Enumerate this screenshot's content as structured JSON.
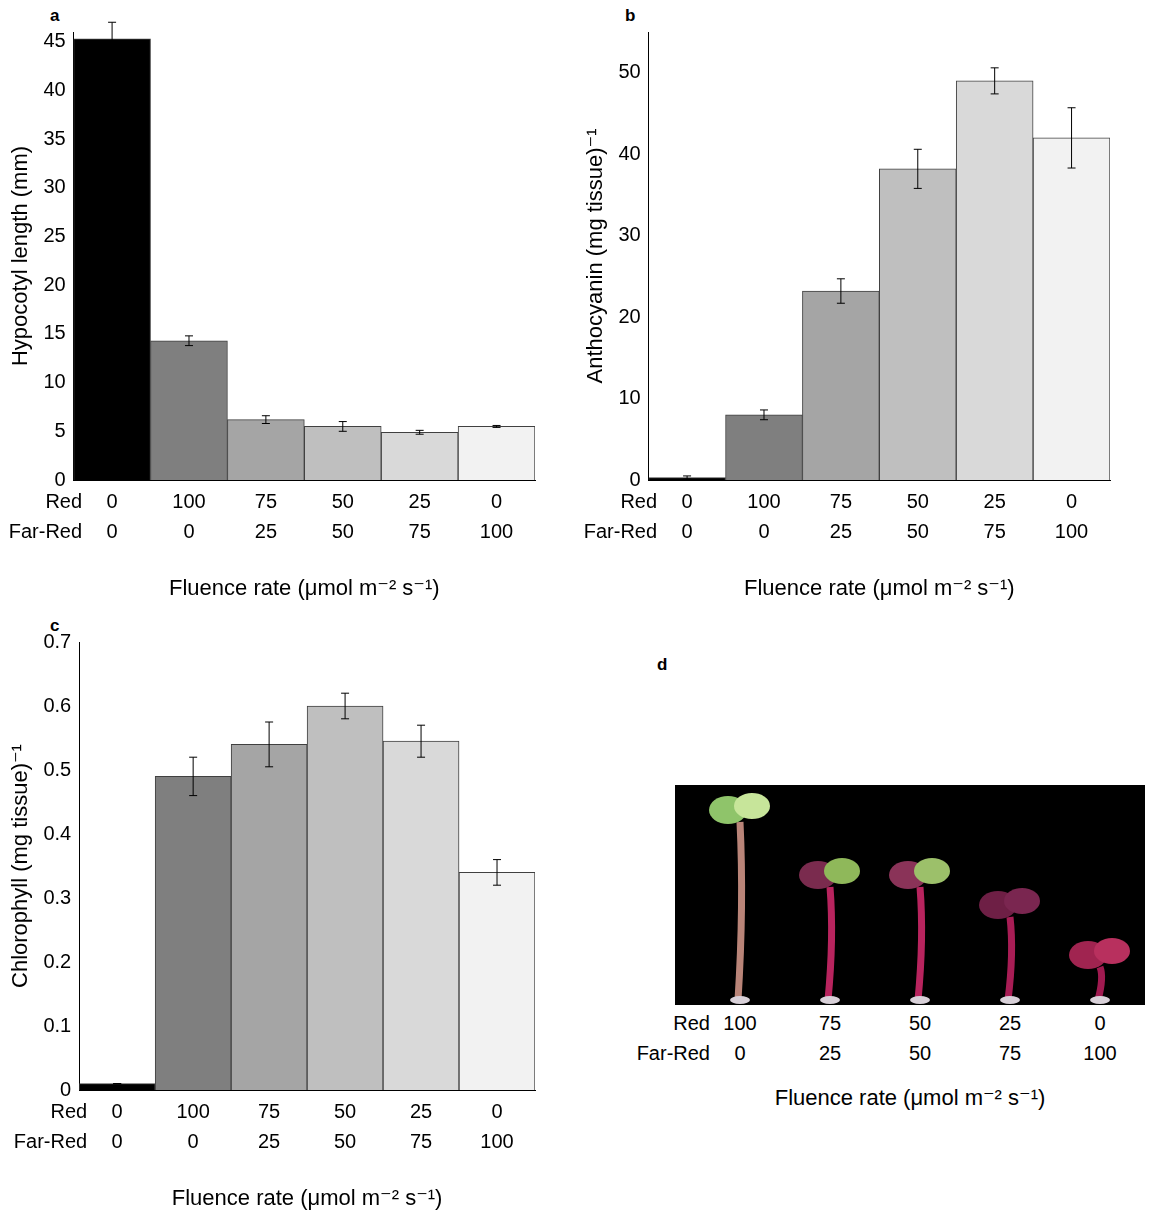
{
  "chart_data": [
    {
      "panel": "a",
      "type": "bar",
      "y_label": "Hypocotyl length (mm)",
      "x_label": "Fluence rate (μmol m⁻² s⁻¹)",
      "category_rows": [
        "Red",
        "Far-Red"
      ],
      "categories": [
        [
          "0",
          "0"
        ],
        [
          "100",
          "0"
        ],
        [
          "75",
          "25"
        ],
        [
          "50",
          "50"
        ],
        [
          "25",
          "75"
        ],
        [
          "0",
          "100"
        ]
      ],
      "values": [
        45.3,
        14.3,
        6.2,
        5.5,
        4.9,
        5.5
      ],
      "errors": [
        1.7,
        0.5,
        0.4,
        0.5,
        0.2,
        0.1
      ],
      "colors": [
        "#000000",
        "#7f7f7f",
        "#a5a5a5",
        "#bfbfbf",
        "#d9d9d9",
        "#f2f2f2"
      ],
      "ylim": [
        0,
        46
      ],
      "yticks": [
        0,
        5,
        10,
        15,
        20,
        25,
        30,
        35,
        40,
        45
      ],
      "grid": false
    },
    {
      "panel": "b",
      "type": "bar",
      "y_label": "Anthocyanin (mg tissue)⁻¹",
      "x_label": "Fluence rate (μmol m⁻² s⁻¹)",
      "category_rows": [
        "Red",
        "Far-Red"
      ],
      "categories": [
        [
          "0",
          "0"
        ],
        [
          "100",
          "0"
        ],
        [
          "75",
          "25"
        ],
        [
          "50",
          "50"
        ],
        [
          "25",
          "75"
        ],
        [
          "0",
          "100"
        ]
      ],
      "values": [
        0.3,
        8,
        23.2,
        38.2,
        49,
        42
      ],
      "errors": [
        0.2,
        0.6,
        1.5,
        2.4,
        1.6,
        3.7
      ],
      "colors": [
        "#000000",
        "#7f7f7f",
        "#a5a5a5",
        "#bfbfbf",
        "#d9d9d9",
        "#f2f2f2"
      ],
      "ylim": [
        0,
        55
      ],
      "yticks": [
        0,
        10,
        20,
        30,
        40,
        50
      ],
      "grid": false
    },
    {
      "panel": "c",
      "type": "bar",
      "y_label": "Chlorophyll (mg tissue)⁻¹",
      "x_label": "Fluence rate (μmol m⁻² s⁻¹)",
      "category_rows": [
        "Red",
        "Far-Red"
      ],
      "categories": [
        [
          "0",
          "0"
        ],
        [
          "100",
          "0"
        ],
        [
          "75",
          "25"
        ],
        [
          "50",
          "50"
        ],
        [
          "25",
          "75"
        ],
        [
          "0",
          "100"
        ]
      ],
      "values": [
        0.01,
        0.49,
        0.54,
        0.6,
        0.545,
        0.34
      ],
      "errors": [
        0,
        0.03,
        0.035,
        0.02,
        0.025,
        0.02
      ],
      "colors": [
        "#000000",
        "#7f7f7f",
        "#a5a5a5",
        "#bfbfbf",
        "#d9d9d9",
        "#f2f2f2"
      ],
      "ylim": [
        0,
        0.7
      ],
      "yticks": [
        0,
        0.1,
        0.2,
        0.3,
        0.4,
        0.5,
        0.6,
        0.7
      ],
      "grid": false
    }
  ],
  "photo": {
    "panel": "d",
    "category_rows": [
      "Red",
      "Far-Red"
    ],
    "categories": [
      [
        "100",
        "0"
      ],
      [
        "75",
        "25"
      ],
      [
        "50",
        "50"
      ],
      [
        "25",
        "75"
      ],
      [
        "0",
        "100"
      ]
    ],
    "x_label": "Fluence rate (μmol m⁻² s⁻¹)"
  }
}
